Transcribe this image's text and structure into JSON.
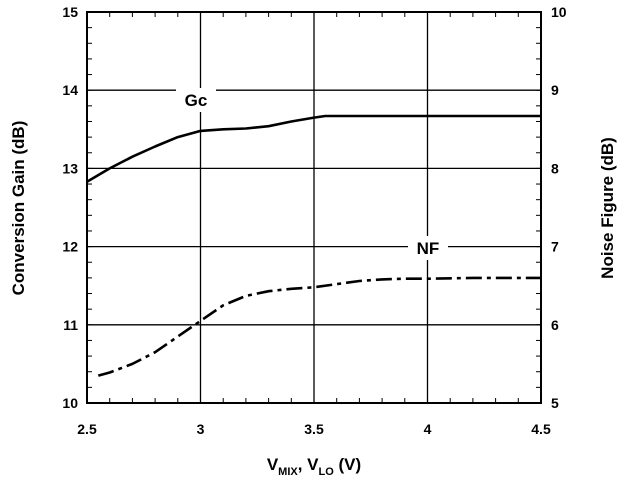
{
  "chart_data": {
    "type": "line",
    "title": "",
    "xlabel": {
      "main": "V",
      "sub1": "MIX",
      "sep": ", V",
      "sub2": "LO",
      "unit": " (V)"
    },
    "ylabel": "Conversion Gain (dB)",
    "y2label": "Noise Figure (dB)",
    "xlim": [
      2.5,
      4.5
    ],
    "ylim": [
      10,
      15
    ],
    "y2lim": [
      5,
      10
    ],
    "grid": true,
    "x_ticks": [
      "2.5",
      "3",
      "3.5",
      "4",
      "4.5"
    ],
    "y_ticks": [
      "10",
      "11",
      "12",
      "13",
      "14",
      "15"
    ],
    "y2_ticks": [
      "5",
      "6",
      "7",
      "8",
      "9",
      "10"
    ],
    "series": [
      {
        "name": "Gc",
        "axis": "left",
        "style": "solid",
        "x": [
          2.5,
          2.6,
          2.7,
          2.8,
          2.9,
          3.0,
          3.1,
          3.2,
          3.3,
          3.4,
          3.5,
          3.55,
          3.6,
          3.8,
          4.0,
          4.2,
          4.5
        ],
        "y": [
          12.83,
          13.0,
          13.15,
          13.28,
          13.4,
          13.48,
          13.5,
          13.51,
          13.54,
          13.6,
          13.65,
          13.67,
          13.67,
          13.67,
          13.67,
          13.67,
          13.67
        ]
      },
      {
        "name": "NF",
        "axis": "right",
        "style": "dashdot",
        "x": [
          2.55,
          2.6,
          2.7,
          2.8,
          2.9,
          3.0,
          3.1,
          3.2,
          3.3,
          3.4,
          3.5,
          3.6,
          3.7,
          3.8,
          3.9,
          4.0,
          4.2,
          4.5
        ],
        "y": [
          5.35,
          5.39,
          5.5,
          5.65,
          5.85,
          6.05,
          6.25,
          6.37,
          6.43,
          6.46,
          6.48,
          6.52,
          6.56,
          6.58,
          6.59,
          6.59,
          6.6,
          6.6
        ]
      }
    ],
    "annotations": [
      "Gc",
      "NF"
    ]
  }
}
